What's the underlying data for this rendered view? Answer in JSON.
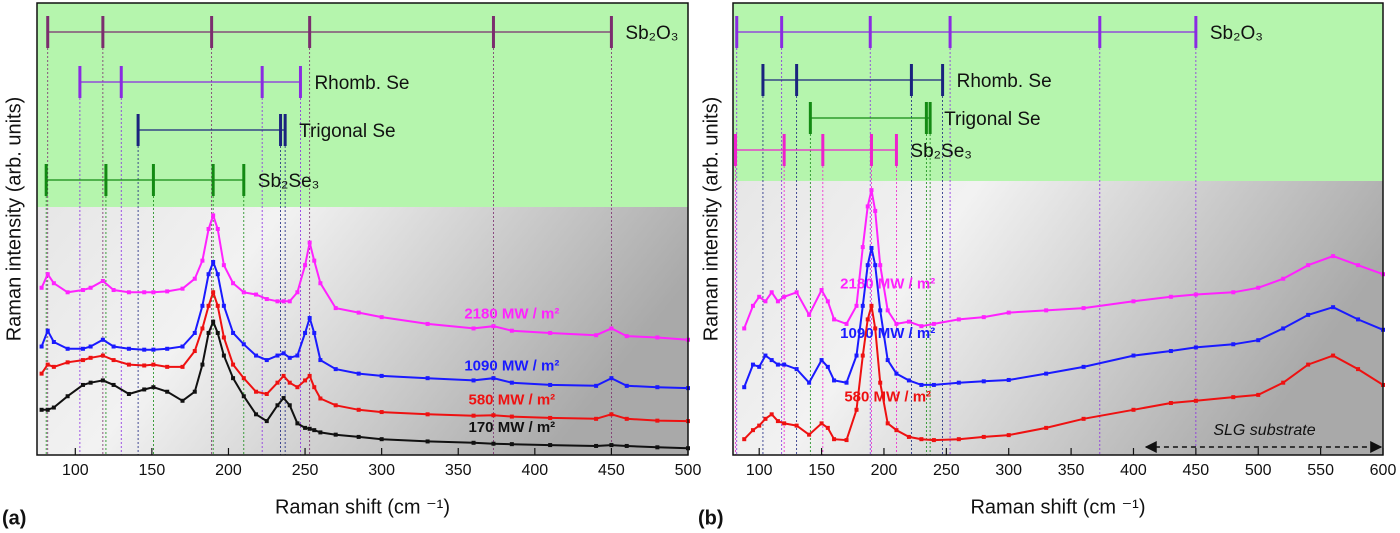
{
  "chart_data": [
    {
      "type": "line",
      "panel_label": "(a)",
      "x_label": "Raman shift (cm ⁻¹)",
      "y_label": "Raman intensity (arb. units)",
      "xlim": [
        75,
        500
      ],
      "xticks": [
        100,
        150,
        200,
        250,
        300,
        350,
        400,
        450,
        500
      ],
      "ylim": [
        0,
        100
      ],
      "x": [
        78,
        82,
        86,
        95,
        105,
        110,
        118,
        125,
        135,
        145,
        151,
        160,
        170,
        178,
        183,
        187,
        190,
        193,
        197,
        203,
        210,
        218,
        225,
        232,
        236,
        240,
        245,
        250,
        253,
        256,
        260,
        270,
        285,
        300,
        330,
        360,
        373,
        385,
        410,
        440,
        450,
        460,
        480,
        500
      ],
      "series": [
        {
          "name": "2180 MW / m²",
          "color": "#ff22ff",
          "values": [
            37,
            40,
            38,
            36,
            36.5,
            37,
            38.5,
            36.5,
            36,
            36,
            36,
            36.2,
            36.8,
            39,
            43,
            50,
            53,
            50,
            42,
            38,
            36,
            35.5,
            34.5,
            34,
            34,
            34,
            36,
            42,
            47,
            43,
            38,
            32.5,
            31.5,
            30.5,
            29,
            28,
            28.5,
            27.5,
            27,
            26.5,
            28,
            26.3,
            26,
            25.5
          ]
        },
        {
          "name": "1090 MW / m²",
          "color": "#1a1aff",
          "values": [
            24,
            27.5,
            25,
            23.5,
            23.5,
            24,
            25.5,
            24,
            23.5,
            23.3,
            23.3,
            23.5,
            24,
            27,
            33,
            40,
            42.7,
            40,
            33,
            27,
            24.5,
            22,
            21,
            22,
            22.5,
            21.5,
            22,
            27,
            30.3,
            27,
            21,
            19,
            18,
            17.5,
            17,
            16.5,
            17,
            16,
            15.5,
            15.3,
            17,
            15.3,
            15,
            14.8
          ]
        },
        {
          "name": "580 MW / m²",
          "color": "#ee1111",
          "values": [
            18,
            20,
            19.5,
            20.5,
            21,
            21.5,
            22,
            21,
            20,
            19.8,
            20,
            19.5,
            19.5,
            23,
            28,
            33,
            36,
            33,
            26,
            20,
            17,
            14,
            13.5,
            16,
            17.5,
            16,
            15,
            16.5,
            17.5,
            15,
            12.5,
            11,
            10,
            9.5,
            9,
            8.7,
            8.8,
            8.5,
            8.2,
            8,
            9,
            8,
            7.6,
            7.5
          ]
        },
        {
          "name": "170 MW / m²",
          "color": "#111111",
          "values": [
            10,
            10,
            10.5,
            13,
            15.5,
            16,
            16.5,
            15.5,
            13.5,
            14.5,
            15,
            14,
            12,
            14,
            20,
            27,
            29.5,
            27,
            22,
            17,
            13,
            9,
            7.5,
            11,
            12.6,
            11,
            7,
            6,
            5.8,
            5.5,
            5,
            4.5,
            4,
            3.5,
            3,
            2.7,
            2.5,
            2.4,
            2.2,
            2,
            2.2,
            2,
            1.7,
            1.5
          ]
        }
      ],
      "phases": [
        {
          "name": "Sb₂O₃",
          "color": "#7b2d6e",
          "positions": [
            82,
            118,
            189,
            253,
            373,
            450
          ]
        },
        {
          "name": "Rhomb. Se",
          "color": "#8a2be2",
          "positions": [
            103,
            130,
            222,
            247
          ]
        },
        {
          "name": "Trigonal Se",
          "color": "#1a237e",
          "positions": [
            141,
            234,
            237
          ]
        },
        {
          "name": "Sb₂Se₃",
          "color": "#138a13",
          "positions": [
            81,
            120,
            151,
            190,
            210
          ]
        }
      ]
    },
    {
      "type": "line",
      "panel_label": "(b)",
      "x_label": "Raman shift (cm ⁻¹)",
      "y_label": "Raman intensity (arb. units)",
      "xlim": [
        79,
        600
      ],
      "xticks": [
        100,
        150,
        200,
        250,
        300,
        350,
        400,
        450,
        500,
        550,
        600
      ],
      "ylim": [
        0,
        100
      ],
      "x": [
        88,
        95,
        100,
        105,
        110,
        115,
        120,
        130,
        140,
        150,
        155,
        160,
        170,
        178,
        183,
        187,
        190,
        193,
        197,
        203,
        210,
        220,
        230,
        240,
        260,
        280,
        300,
        330,
        360,
        400,
        430,
        450,
        480,
        500,
        520,
        540,
        560,
        580,
        600
      ],
      "series": [
        {
          "name": "2180 MW / m²",
          "color": "#ff22ff",
          "values": [
            28,
            33,
            35,
            34,
            36,
            34,
            35,
            36,
            31,
            36.5,
            34,
            30,
            29,
            33,
            46,
            55,
            58.6,
            54,
            42,
            32,
            29,
            29.5,
            28.5,
            29,
            30,
            30.5,
            31.5,
            32,
            32.5,
            34,
            35,
            35.5,
            36,
            37,
            39,
            42,
            44,
            42,
            40
          ]
        },
        {
          "name": "1090 MW / m²",
          "color": "#1a1aff",
          "values": [
            15,
            20,
            19.5,
            22,
            21,
            20,
            20,
            19,
            16,
            21,
            19.5,
            16.5,
            16,
            22,
            33,
            42,
            45.8,
            42,
            32,
            21,
            18,
            16.5,
            15.5,
            15.5,
            16,
            16.3,
            16.6,
            18,
            19.5,
            22,
            23,
            23.8,
            24.5,
            25.4,
            28,
            31,
            32.7,
            30,
            27.7
          ]
        },
        {
          "name": "580 MW / m²",
          "color": "#ee1111",
          "values": [
            3.5,
            5.5,
            6.5,
            8,
            9,
            7.5,
            7,
            6.5,
            4.5,
            7,
            6,
            3.5,
            3.3,
            10,
            22,
            30,
            33,
            28,
            16,
            7,
            5.5,
            4,
            3.5,
            3.3,
            3.5,
            4,
            4.4,
            6,
            8,
            10,
            11.5,
            12,
            12.8,
            13.3,
            16,
            20,
            22,
            19,
            15.5
          ]
        }
      ],
      "phases": [
        {
          "name": "Sb₂O₃",
          "color": "#8a2be2",
          "positions": [
            82,
            118,
            189,
            253,
            373,
            450
          ]
        },
        {
          "name": "Rhomb. Se",
          "color": "#1a237e",
          "positions": [
            103,
            130,
            222,
            247
          ]
        },
        {
          "name": "Trigonal Se",
          "color": "#138a13",
          "positions": [
            141,
            234,
            237
          ]
        },
        {
          "name": "Sb₂Se₃",
          "color": "#ee22cc",
          "positions": [
            81,
            120,
            151,
            190,
            210
          ]
        }
      ],
      "annotation": {
        "text": "SLG substrate",
        "x": [
          410,
          600
        ]
      }
    }
  ]
}
